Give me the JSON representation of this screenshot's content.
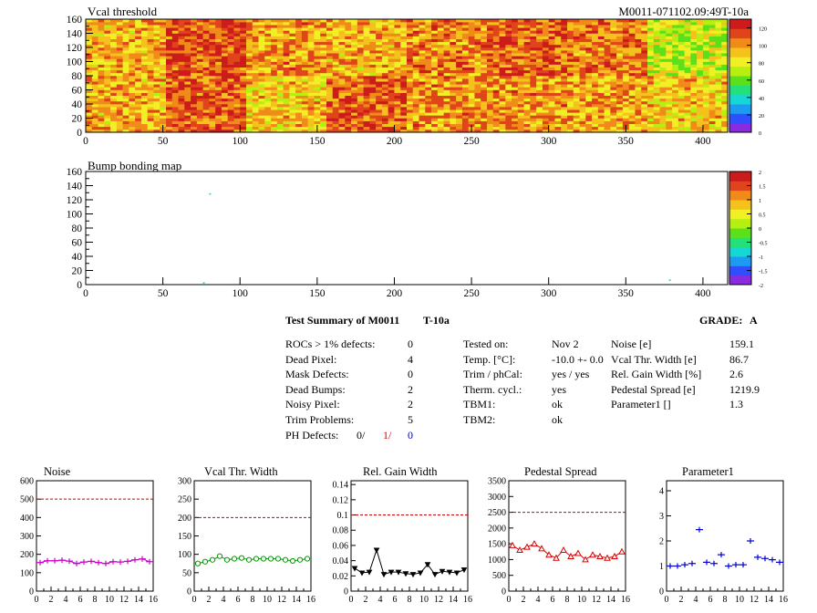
{
  "header": {
    "vcal_title": "Vcal threshold",
    "module_id": "M0011-071102.09:49T-10a",
    "bump_title": "Bump bonding map"
  },
  "chart_data": [
    {
      "type": "heatmap",
      "title": "Vcal threshold",
      "x_range": [
        0,
        416
      ],
      "y_range": [
        0,
        160
      ],
      "x_ticks": [
        "0",
        "50",
        "100",
        "150",
        "200",
        "250",
        "300",
        "350",
        "400"
      ],
      "y_ticks": [
        "0",
        "20",
        "40",
        "60",
        "80",
        "100",
        "120",
        "140",
        "160"
      ],
      "z_range": [
        0,
        130
      ],
      "z_ticks": [
        "0",
        "20",
        "40",
        "60",
        "80",
        "100",
        "120"
      ],
      "roc_grid": {
        "cols": 8,
        "rows": 2,
        "roc_width": 52,
        "roc_height": 80
      },
      "roc_levels": [
        [
          95,
          115,
          100,
          95,
          102,
          110,
          105,
          75
        ],
        [
          95,
          110,
          90,
          110,
          100,
          100,
          95,
          90
        ]
      ],
      "palette": [
        "#8a2be2",
        "#2f4fff",
        "#1b9cf0",
        "#17d6d6",
        "#23e07a",
        "#5be01a",
        "#b8ef12",
        "#f0f025",
        "#f5c21d",
        "#f08a18",
        "#e0441b",
        "#cc1b1b"
      ]
    },
    {
      "type": "heatmap",
      "title": "Bump bonding map",
      "x_range": [
        0,
        416
      ],
      "y_range": [
        0,
        160
      ],
      "x_ticks": [
        "0",
        "50",
        "100",
        "150",
        "200",
        "250",
        "300",
        "350",
        "400"
      ],
      "y_ticks": [
        "0",
        "20",
        "40",
        "60",
        "80",
        "100",
        "120",
        "140",
        "160"
      ],
      "z_range": [
        -2,
        2
      ],
      "z_ticks": [
        "-2",
        "-1.5",
        "-1",
        "-0.5",
        "0",
        "0.5",
        "1",
        "1.5",
        "2"
      ],
      "points": [
        {
          "x": 80,
          "y": 128
        },
        {
          "x": 76,
          "y": 2
        },
        {
          "x": 378,
          "y": 6
        }
      ]
    },
    {
      "type": "line",
      "title": "Noise",
      "x": [
        0,
        1,
        2,
        3,
        4,
        5,
        6,
        7,
        8,
        9,
        10,
        11,
        12,
        13,
        14,
        15
      ],
      "values": [
        155,
        165,
        165,
        168,
        163,
        150,
        158,
        162,
        155,
        150,
        160,
        158,
        162,
        170,
        175,
        160
      ],
      "xlim": [
        0,
        16
      ],
      "ylim": [
        0,
        600
      ],
      "x_ticks": [
        "0",
        "2",
        "4",
        "6",
        "8",
        "10",
        "12",
        "14",
        "16"
      ],
      "y_ticks": [
        "0",
        "100",
        "200",
        "300",
        "400",
        "500",
        "600"
      ],
      "threshold": 500,
      "color": "#cc00cc",
      "marker": "plus"
    },
    {
      "type": "line",
      "title": "Vcal Thr. Width",
      "x": [
        0,
        1,
        2,
        3,
        4,
        5,
        6,
        7,
        8,
        9,
        10,
        11,
        12,
        13,
        14,
        15
      ],
      "values": [
        75,
        80,
        85,
        95,
        85,
        88,
        90,
        85,
        88,
        88,
        88,
        88,
        85,
        82,
        85,
        88
      ],
      "xlim": [
        0,
        16
      ],
      "ylim": [
        0,
        300
      ],
      "x_ticks": [
        "0",
        "2",
        "4",
        "6",
        "8",
        "10",
        "12",
        "14",
        "16"
      ],
      "y_ticks": [
        "0",
        "50",
        "100",
        "150",
        "200",
        "250",
        "300"
      ],
      "threshold": 200,
      "color": "#009900",
      "marker": "circle"
    },
    {
      "type": "line",
      "title": "Rel. Gain Width",
      "x": [
        0,
        1,
        2,
        3,
        4,
        5,
        6,
        7,
        8,
        9,
        10,
        11,
        12,
        13,
        14,
        15
      ],
      "values": [
        0.03,
        0.024,
        0.025,
        0.054,
        0.022,
        0.025,
        0.025,
        0.023,
        0.022,
        0.024,
        0.035,
        0.022,
        0.026,
        0.025,
        0.024,
        0.028
      ],
      "xlim": [
        0,
        16
      ],
      "ylim": [
        0,
        0.145
      ],
      "x_ticks": [
        "0",
        "2",
        "4",
        "6",
        "8",
        "10",
        "12",
        "14",
        "16"
      ],
      "y_ticks": [
        "0",
        "0.02",
        "0.04",
        "0.06",
        "0.08",
        "0.1",
        "0.12",
        "0.14"
      ],
      "threshold": 0.1,
      "color": "#000000",
      "marker": "triangle-down"
    },
    {
      "type": "line",
      "title": "Pedestal Spread",
      "x": [
        0,
        1,
        2,
        3,
        4,
        5,
        6,
        7,
        8,
        9,
        10,
        11,
        12,
        13,
        14,
        15
      ],
      "values": [
        1450,
        1300,
        1400,
        1500,
        1350,
        1150,
        1050,
        1300,
        1100,
        1200,
        1000,
        1150,
        1100,
        1050,
        1100,
        1250
      ],
      "xlim": [
        0,
        16
      ],
      "ylim": [
        0,
        3500
      ],
      "x_ticks": [
        "0",
        "2",
        "4",
        "6",
        "8",
        "10",
        "12",
        "14",
        "16"
      ],
      "y_ticks": [
        "0",
        "500",
        "1000",
        "1500",
        "2000",
        "2500",
        "3000",
        "3500"
      ],
      "threshold": 2500,
      "color": "#dd0000",
      "marker": "triangle-up"
    },
    {
      "type": "scatter",
      "title": "Parameter1",
      "x": [
        0,
        1,
        2,
        3,
        4,
        5,
        6,
        7,
        8,
        9,
        10,
        11,
        12,
        13,
        14,
        15
      ],
      "values": [
        1.0,
        1.0,
        1.05,
        1.1,
        2.45,
        1.15,
        1.1,
        1.45,
        1.0,
        1.05,
        1.05,
        2.0,
        1.35,
        1.3,
        1.25,
        1.15
      ],
      "xlim": [
        0,
        16
      ],
      "ylim": [
        0,
        4.4
      ],
      "x_ticks": [
        "0",
        "2",
        "4",
        "6",
        "8",
        "10",
        "12",
        "14",
        "16"
      ],
      "y_ticks": [
        "0",
        "1",
        "2",
        "3",
        "4"
      ],
      "threshold": null,
      "color": "#0000cc",
      "marker": "plus"
    }
  ],
  "summary": {
    "title": "Test Summary of M0011",
    "test_id": "T-10a",
    "grade_label": "GRADE:",
    "grade_value": "A",
    "col1": [
      {
        "label": "ROCs > 1% defects:",
        "value": "0"
      },
      {
        "label": "Dead Pixel:",
        "value": "4"
      },
      {
        "label": "Mask Defects:",
        "value": "0"
      },
      {
        "label": "Dead Bumps:",
        "value": "2"
      },
      {
        "label": "Noisy Pixel:",
        "value": "2"
      },
      {
        "label": "Trim Problems:",
        "value": "5"
      }
    ],
    "ph_defects": {
      "label": "PH Defects:",
      "v1": "0/",
      "v2": "1/",
      "v3": "0",
      "c1": "#000000",
      "c2": "#dd0000",
      "c3": "#0000cc"
    },
    "col2": [
      {
        "label": "Tested on:",
        "value": "Nov 2"
      },
      {
        "label": "Temp. [°C]:",
        "value": "-10.0 +- 0.0"
      },
      {
        "label": "Trim / phCal:",
        "value": "yes / yes"
      },
      {
        "label": "Therm. cycl.:",
        "value": "yes"
      },
      {
        "label": "TBM1:",
        "value": "ok"
      },
      {
        "label": "TBM2:",
        "value": "ok"
      }
    ],
    "col3": [
      {
        "label": "Noise [e]",
        "value": "159.1"
      },
      {
        "label": "Vcal Thr. Width [e]",
        "value": "86.7"
      },
      {
        "label": "Rel. Gain Width [%]",
        "value": "2.6"
      },
      {
        "label": "Pedestal Spread [e]",
        "value": "1219.9"
      },
      {
        "label": "Parameter1 []",
        "value": "1.3"
      }
    ]
  }
}
